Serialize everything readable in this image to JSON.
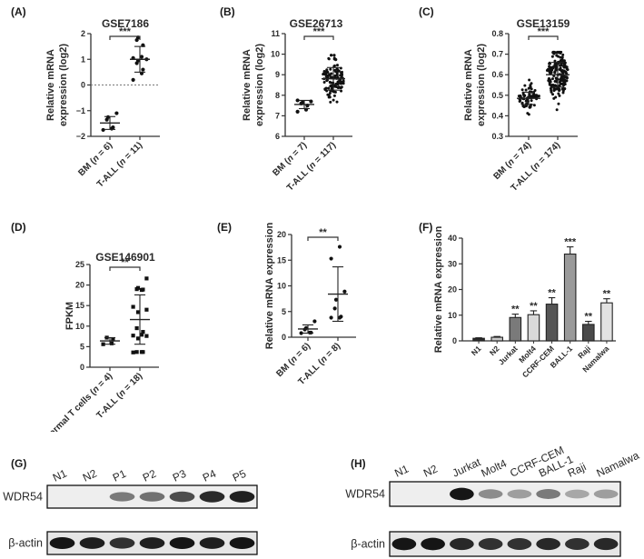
{
  "panels": {
    "A": {
      "label": "(A)"
    },
    "B": {
      "label": "(B)"
    },
    "C": {
      "label": "(C)"
    },
    "D": {
      "label": "(D)"
    },
    "E": {
      "label": "(E)"
    },
    "F": {
      "label": "(F)"
    },
    "G": {
      "label": "(G)"
    },
    "H": {
      "label": "(H)"
    }
  },
  "chart_data": [
    {
      "panel": "A",
      "type": "scatter",
      "title": "GSE7186",
      "ylabel": "Relative mRNA expression (log2)",
      "ylim": [
        -2,
        2
      ],
      "yticks": [
        "2",
        "1",
        "0",
        "−1",
        "−2"
      ],
      "categories": [
        "BM (n = 6)",
        "T-ALL (n = 11)"
      ],
      "significance": "***",
      "reference_line": 0,
      "series": [
        {
          "name": "BM (n = 6)",
          "values": [
            -1.1,
            -1.25,
            -1.35,
            -1.75,
            -1.7,
            -1.65
          ],
          "mean": -1.48,
          "sd": 0.25
        },
        {
          "name": "T-ALL (n = 11)",
          "values": [
            1.85,
            1.75,
            1.55,
            1.1,
            1.05,
            1.0,
            0.95,
            0.85,
            0.6,
            0.45,
            0.2
          ],
          "mean": 1.0,
          "sd": 0.5
        }
      ]
    },
    {
      "panel": "B",
      "type": "scatter",
      "title": "GSE26713",
      "ylabel": "Relative mRNA expression (log2)",
      "ylim": [
        6,
        11
      ],
      "yticks": [
        "11",
        "10",
        "9",
        "8",
        "7",
        "6"
      ],
      "categories": [
        "BM (n = 7)",
        "T-ALL (n = 117)"
      ],
      "significance": "***",
      "series": [
        {
          "name": "BM (n = 7)",
          "values": [
            7.75,
            7.7,
            7.65,
            7.6,
            7.5,
            7.3,
            7.2
          ],
          "mean": 7.55,
          "sd": 0.2
        },
        {
          "name": "T-ALL (n = 117)",
          "n": 117,
          "range": [
            7.0,
            9.95
          ],
          "mean": 8.8,
          "sd": 0.55
        }
      ]
    },
    {
      "panel": "C",
      "type": "scatter",
      "title": "GSE13159",
      "ylabel": "Relative mRNA expression (log2)",
      "ylim": [
        0.3,
        0.8
      ],
      "yticks": [
        "0.8",
        "0.7",
        "0.6",
        "0.5",
        "0.4",
        "0.3"
      ],
      "categories": [
        "BM (n = 74)",
        "T-ALL (n = 174)"
      ],
      "significance": "***",
      "series": [
        {
          "name": "BM (n = 74)",
          "n": 74,
          "range": [
            0.39,
            0.58
          ],
          "mean": 0.485,
          "sd": 0.03
        },
        {
          "name": "T-ALL (n = 174)",
          "n": 174,
          "range": [
            0.4,
            0.71
          ],
          "mean": 0.6,
          "sd": 0.06
        }
      ]
    },
    {
      "panel": "D",
      "type": "scatter",
      "title": "GSE146901",
      "ylabel": "FPKM",
      "ylim": [
        0,
        25
      ],
      "yticks": [
        "25",
        "20",
        "15",
        "10",
        "5",
        "0"
      ],
      "categories": [
        "normal T cells (n = 4)",
        "T-ALL (n = 18)"
      ],
      "significance": "**",
      "series": [
        {
          "name": "normal T cells (n = 4)",
          "values": [
            7.2,
            6.8,
            5.8,
            5.6
          ],
          "mean": 6.4,
          "sd": 0.8
        },
        {
          "name": "T-ALL (n = 18)",
          "values": [
            21.6,
            19.3,
            19.0,
            18.9,
            18.8,
            14.7,
            14.0,
            13.4,
            9.5,
            8.6,
            7.9,
            7.7,
            7.6,
            7.0,
            3.7,
            3.7,
            3.6,
            3.7
          ],
          "mean": 11.6,
          "sd": 6.0
        }
      ]
    },
    {
      "panel": "E",
      "type": "scatter",
      "title": "",
      "ylabel": "Relative mRNA expression",
      "ylim": [
        0,
        20
      ],
      "yticks": [
        "20",
        "15",
        "10",
        "5",
        "0"
      ],
      "categories": [
        "BM (n = 6)",
        "T-ALL (n = 8)"
      ],
      "significance": "**",
      "series": [
        {
          "name": "BM (n = 6)",
          "values": [
            3.1,
            1.8,
            1.5,
            0.9,
            0.8,
            0.9
          ],
          "mean": 1.6,
          "sd": 0.8
        },
        {
          "name": "T-ALL (n = 8)",
          "values": [
            17.6,
            15.3,
            8.9,
            7.3,
            5.6,
            3.8,
            3.8,
            4.0
          ],
          "mean": 8.4,
          "sd": 5.3
        }
      ]
    },
    {
      "panel": "F",
      "type": "bar",
      "title": "",
      "ylabel": "Relative mRNA expression",
      "ylim": [
        0,
        40
      ],
      "yticks": [
        "40",
        "30",
        "20",
        "10",
        "0"
      ],
      "categories": [
        "N1",
        "N2",
        "Jurkat",
        "Molt4",
        "CCRF-CEM",
        "BALL-1",
        "Raji",
        "Namalwa"
      ],
      "values": [
        1.0,
        1.4,
        9.1,
        10.2,
        14.3,
        33.8,
        6.4,
        14.8
      ],
      "errors": [
        0.2,
        0.3,
        1.3,
        1.5,
        2.5,
        2.8,
        1.2,
        1.6
      ],
      "significance": [
        "",
        "",
        "**",
        "**",
        "**",
        "***",
        "**",
        "**"
      ],
      "colors": [
        "#2b2b2b",
        "#c8c8c8",
        "#7a7a7a",
        "#d9d9d9",
        "#555555",
        "#9a9a9a",
        "#4a4a4a",
        "#e2e2e2"
      ]
    }
  ],
  "blots": {
    "G": {
      "lanes": [
        "N1",
        "N2",
        "P1",
        "P2",
        "P3",
        "P4",
        "P5"
      ],
      "rows": [
        {
          "label": "WDR54",
          "intensity": [
            0.0,
            0.0,
            0.45,
            0.5,
            0.7,
            0.9,
            0.95
          ]
        },
        {
          "label": "β-actin",
          "intensity": [
            1.0,
            0.95,
            0.85,
            0.95,
            1.0,
            0.95,
            1.0
          ]
        }
      ]
    },
    "H": {
      "lanes": [
        "N1",
        "N2",
        "Jurkat",
        "Molt4",
        "CCRF-CEM",
        "BALL-1",
        "Raji",
        "Namalwa"
      ],
      "rows": [
        {
          "label": "WDR54",
          "intensity": [
            0.0,
            0.0,
            1.0,
            0.35,
            0.25,
            0.45,
            0.2,
            0.25
          ]
        },
        {
          "label": "β-actin",
          "intensity": [
            1.0,
            1.0,
            0.9,
            0.85,
            0.85,
            0.9,
            0.85,
            0.9
          ]
        }
      ]
    }
  }
}
